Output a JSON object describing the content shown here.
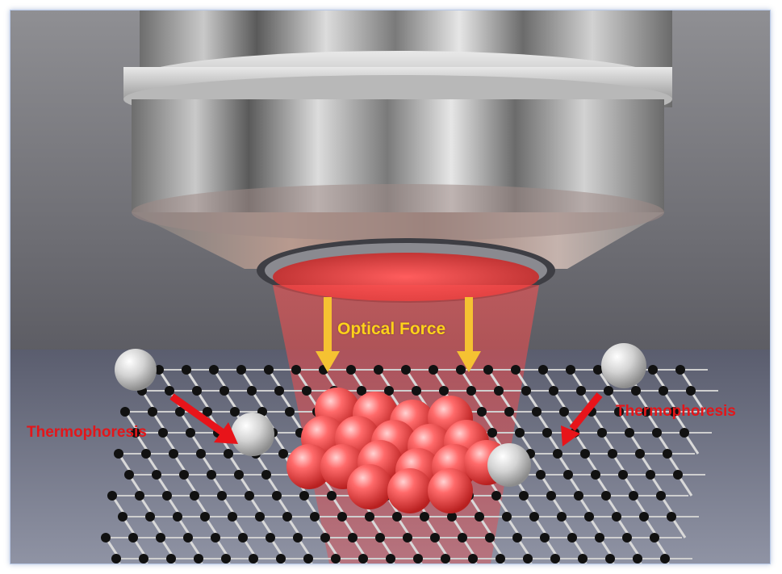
{
  "labels": {
    "optical_force": "Optical Force",
    "thermophoresis_left": "Thermophoresis",
    "thermophoresis_right": "Thermophoresis"
  },
  "colors": {
    "optical_arrow": "#f5c232",
    "thermo_arrow": "#e8141a",
    "laser": "#ff3b3b",
    "graphene_atom": "#111111",
    "particle_trapped": "#ff4a4a",
    "particle_free": "#d8d8d8"
  },
  "icons": {
    "objective": "microscope-objective-icon",
    "lattice": "graphene-lattice-icon"
  }
}
